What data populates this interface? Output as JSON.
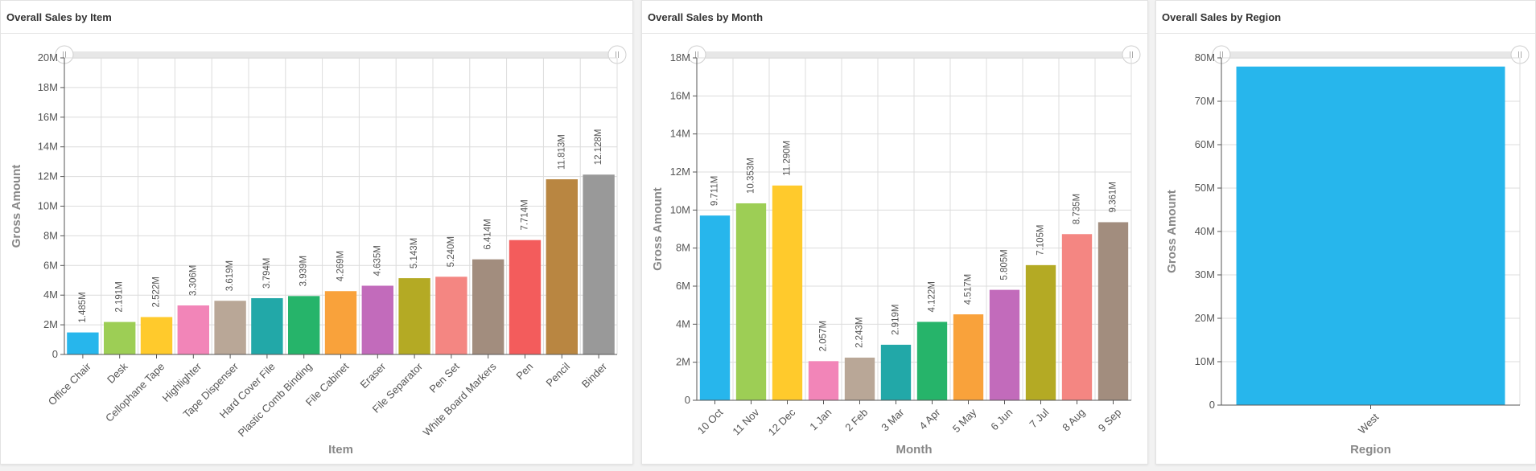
{
  "chart_data": [
    {
      "type": "bar",
      "title": "Overall Sales by Item",
      "xlabel": "Item",
      "ylabel": "Gross Amount",
      "ylim": [
        0,
        20000000
      ],
      "yticks": [
        "0",
        "2M",
        "4M",
        "6M",
        "8M",
        "10M",
        "12M",
        "14M",
        "16M",
        "18M",
        "20M"
      ],
      "grid": true,
      "categories": [
        "Office Chair",
        "Desk",
        "Cellophane Tape",
        "Highlighter",
        "Tape Dispenser",
        "Hard Cover File",
        "Plastic Comb Binding",
        "File Cabinet",
        "Eraser",
        "File Separator",
        "Pen Set",
        "White Board Markers",
        "Pen",
        "Pencil",
        "Binder"
      ],
      "values": [
        1485000,
        2191000,
        2522000,
        3306000,
        3619000,
        3794000,
        3939000,
        4269000,
        4635000,
        5143000,
        5240000,
        6414000,
        7714000,
        11813000,
        12128000
      ],
      "value_labels": [
        "1.485M",
        "2.191M",
        "2.522M",
        "3.306M",
        "3.619M",
        "3.794M",
        "3.939M",
        "4.269M",
        "4.635M",
        "5.143M",
        "5.240M",
        "6.414M",
        "7.714M",
        "11.813M",
        "12.128M"
      ],
      "colors": [
        "#27b6ec",
        "#9dce55",
        "#ffca2c",
        "#f285b8",
        "#b9a797",
        "#22a8a8",
        "#26b46a",
        "#f9a23b",
        "#c26bbb",
        "#b4aa24",
        "#f48682",
        "#a28d7e",
        "#f35c5c",
        "#b98641",
        "#999999"
      ]
    },
    {
      "type": "bar",
      "title": "Overall Sales by Month",
      "xlabel": "Month",
      "ylabel": "Gross Amount",
      "ylim": [
        0,
        18000000
      ],
      "yticks": [
        "0",
        "2M",
        "4M",
        "6M",
        "8M",
        "10M",
        "12M",
        "14M",
        "16M",
        "18M"
      ],
      "grid": true,
      "categories": [
        "10 Oct",
        "11 Nov",
        "12 Dec",
        "1 Jan",
        "2 Feb",
        "3 Mar",
        "4 Apr",
        "5 May",
        "6 Jun",
        "7 Jul",
        "8 Aug",
        "9 Sep"
      ],
      "values": [
        9711000,
        10353000,
        11290000,
        2057000,
        2243000,
        2919000,
        4122000,
        4517000,
        5805000,
        7105000,
        8735000,
        9361000
      ],
      "value_labels": [
        "9.711M",
        "10.353M",
        "11.290M",
        "2.057M",
        "2.243M",
        "2.919M",
        "4.122M",
        "4.517M",
        "5.805M",
        "7.105M",
        "8.735M",
        "9.361M"
      ],
      "colors": [
        "#27b6ec",
        "#9dce55",
        "#ffca2c",
        "#f285b8",
        "#b9a797",
        "#22a8a8",
        "#26b46a",
        "#f9a23b",
        "#c26bbb",
        "#b4aa24",
        "#f48682",
        "#a28d7e"
      ]
    },
    {
      "type": "bar",
      "title": "Overall Sales by Region",
      "xlabel": "Region",
      "ylabel": "Gross Amount",
      "ylim": [
        0,
        80000000
      ],
      "yticks": [
        "0",
        "10M",
        "20M",
        "30M",
        "40M",
        "50M",
        "60M",
        "70M",
        "80M"
      ],
      "grid": true,
      "categories": [
        "West"
      ],
      "values": [
        78000000
      ],
      "value_labels": [],
      "colors": [
        "#27b6ec"
      ]
    }
  ]
}
